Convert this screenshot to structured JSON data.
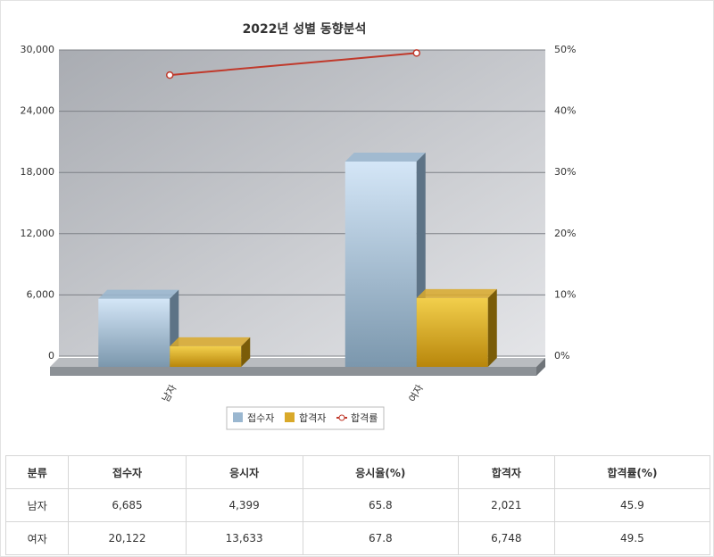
{
  "chart_data": {
    "type": "bar",
    "title": "2022년 성별 동향분석",
    "categories": [
      "남자",
      "여자"
    ],
    "series": [
      {
        "name": "접수자",
        "color": "#9ab7d0",
        "values": [
          6685,
          20122
        ]
      },
      {
        "name": "합격자",
        "color": "#d9a92a",
        "values": [
          2021,
          6748
        ]
      },
      {
        "name": "합격률",
        "color": "#c0392b",
        "type": "line",
        "axis": "y2",
        "values": [
          45.9,
          49.5
        ]
      }
    ],
    "ylim": [
      0,
      30000
    ],
    "yticks": [
      0,
      {
        "value": 6000,
        "label": "6,000"
      },
      {
        "value": 12000,
        "label": "12,000"
      },
      {
        "value": 18000,
        "label": "18,000"
      },
      {
        "value": 24000,
        "label": "24,000"
      },
      {
        "value": 30000,
        "label": "30,000"
      }
    ],
    "y2lim": [
      0,
      50
    ],
    "y2ticks": [
      {
        "value": 0,
        "label": "0%"
      },
      {
        "value": 10,
        "label": "10%"
      },
      {
        "value": 20,
        "label": "20%"
      },
      {
        "value": 30,
        "label": "30%"
      },
      {
        "value": 40,
        "label": "40%"
      },
      {
        "value": 50,
        "label": "50%"
      }
    ],
    "grid": true,
    "legend": "bottom"
  },
  "table": {
    "header": [
      "분류",
      "접수자",
      "응시자",
      "응시율(%)",
      "합격자",
      "합격률(%)"
    ],
    "rows": [
      [
        "남자",
        "6,685",
        "4,399",
        "65.8",
        "2,021",
        "45.9"
      ],
      [
        "여자",
        "20,122",
        "13,633",
        "67.8",
        "6,748",
        "49.5"
      ]
    ]
  }
}
